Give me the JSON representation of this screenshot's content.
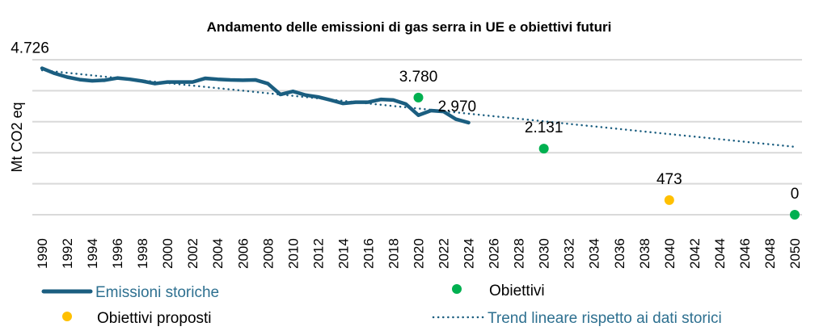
{
  "chart_data": {
    "type": "line",
    "title": "Andamento delle emissioni di gas serra in UE e obiettivi futuri",
    "xlabel": "",
    "ylabel": "Mt CO2 eq",
    "xlim": [
      1990,
      2050
    ],
    "ylim": [
      0,
      5000
    ],
    "grid": true,
    "y_tick_labels_shown": false,
    "x_ticks": [
      1990,
      1992,
      1994,
      1996,
      1998,
      2000,
      2002,
      2004,
      2006,
      2008,
      2010,
      2012,
      2014,
      2016,
      2018,
      2020,
      2022,
      2024,
      2026,
      2028,
      2030,
      2032,
      2034,
      2036,
      2038,
      2040,
      2042,
      2044,
      2046,
      2048,
      2050
    ],
    "legend_placement": "bottom",
    "series": [
      {
        "name": "Emissioni storiche",
        "kind": "line",
        "color": "#1b5e80",
        "x": [
          1990,
          1991,
          1992,
          1993,
          1994,
          1995,
          1996,
          1997,
          1998,
          1999,
          2000,
          2001,
          2002,
          2003,
          2004,
          2005,
          2006,
          2007,
          2008,
          2009,
          2010,
          2011,
          2012,
          2013,
          2014,
          2015,
          2016,
          2017,
          2018,
          2019,
          2020,
          2021,
          2022,
          2023,
          2024
        ],
        "y": [
          4726,
          4560,
          4440,
          4360,
          4320,
          4340,
          4410,
          4370,
          4310,
          4230,
          4280,
          4280,
          4280,
          4400,
          4370,
          4350,
          4340,
          4350,
          4230,
          3880,
          3980,
          3860,
          3800,
          3700,
          3590,
          3630,
          3630,
          3720,
          3700,
          3570,
          3210,
          3360,
          3330,
          3080,
          2970
        ]
      },
      {
        "name": "Obiettivi",
        "kind": "points",
        "color": "#00b050",
        "x": [
          2020,
          2030,
          2050
        ],
        "y": [
          3780,
          2131,
          0
        ]
      },
      {
        "name": "Obiettivi proposti",
        "kind": "points",
        "color": "#ffc000",
        "x": [
          2040
        ],
        "y": [
          473
        ]
      },
      {
        "name": "Trend lineare rispetto ai dati storici",
        "kind": "dotted-line",
        "color": "#1b5e80",
        "x": [
          1990,
          2050
        ],
        "y": [
          4660,
          2190
        ]
      }
    ],
    "data_labels": [
      {
        "text": "4.726",
        "x": 1990,
        "y": 4726
      },
      {
        "text": "3.780",
        "x": 2020,
        "y": 3780
      },
      {
        "text": "2.970",
        "x": 2024,
        "y": 2970
      },
      {
        "text": "2.131",
        "x": 2030,
        "y": 2131
      },
      {
        "text": "473",
        "x": 2040,
        "y": 473
      },
      {
        "text": "0",
        "x": 2050,
        "y": 0
      }
    ]
  }
}
